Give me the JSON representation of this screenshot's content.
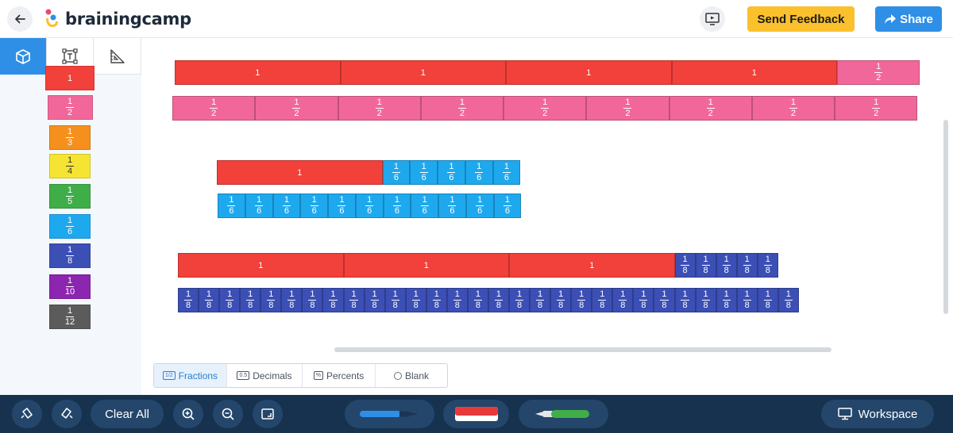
{
  "header": {
    "logo_text": "brainingcamp",
    "feedback_label": "Send Feedback",
    "share_label": "Share",
    "icons": {
      "back": "back-arrow-icon",
      "present": "present-screen-icon",
      "share": "share-arrow-icon"
    }
  },
  "sidebar": {
    "tools": [
      {
        "name": "cube-icon",
        "active": true
      },
      {
        "name": "text-box-icon",
        "active": false
      },
      {
        "name": "ruler-icon",
        "active": false
      }
    ],
    "palette": [
      {
        "num": "1",
        "den": "",
        "color": "#f2403a"
      },
      {
        "num": "1",
        "den": "2",
        "color": "#f2679a"
      },
      {
        "num": "1",
        "den": "3",
        "color": "#f5901e"
      },
      {
        "num": "1",
        "den": "4",
        "color": "#f5e532"
      },
      {
        "num": "1",
        "den": "5",
        "color": "#3fae49"
      },
      {
        "num": "1",
        "den": "6",
        "color": "#1ea9ef"
      },
      {
        "num": "1",
        "den": "8",
        "color": "#3b4fb5"
      },
      {
        "num": "1",
        "den": "10",
        "color": "#8c25b0"
      },
      {
        "num": "1",
        "den": "12",
        "color": "#5b5b5b"
      }
    ]
  },
  "workspace": {
    "rows": [
      {
        "pieces": [
          {
            "num": "1",
            "den": ""
          },
          {
            "num": "1",
            "den": ""
          },
          {
            "num": "1",
            "den": ""
          },
          {
            "num": "1",
            "den": ""
          },
          {
            "num": "1",
            "den": "2"
          }
        ]
      },
      {
        "pieces": [
          {
            "num": "1",
            "den": "2"
          },
          {
            "num": "1",
            "den": "2"
          },
          {
            "num": "1",
            "den": "2"
          },
          {
            "num": "1",
            "den": "2"
          },
          {
            "num": "1",
            "den": "2"
          },
          {
            "num": "1",
            "den": "2"
          },
          {
            "num": "1",
            "den": "2"
          },
          {
            "num": "1",
            "den": "2"
          },
          {
            "num": "1",
            "den": "2"
          }
        ]
      },
      {
        "pieces": [
          {
            "num": "1",
            "den": ""
          },
          {
            "num": "1",
            "den": "6"
          },
          {
            "num": "1",
            "den": "6"
          },
          {
            "num": "1",
            "den": "6"
          },
          {
            "num": "1",
            "den": "6"
          },
          {
            "num": "1",
            "den": "6"
          }
        ]
      },
      {
        "pieces": [
          {
            "num": "1",
            "den": "6"
          },
          {
            "num": "1",
            "den": "6"
          },
          {
            "num": "1",
            "den": "6"
          },
          {
            "num": "1",
            "den": "6"
          },
          {
            "num": "1",
            "den": "6"
          },
          {
            "num": "1",
            "den": "6"
          },
          {
            "num": "1",
            "den": "6"
          },
          {
            "num": "1",
            "den": "6"
          },
          {
            "num": "1",
            "den": "6"
          },
          {
            "num": "1",
            "den": "6"
          },
          {
            "num": "1",
            "den": "6"
          }
        ]
      },
      {
        "pieces": [
          {
            "num": "1",
            "den": ""
          },
          {
            "num": "1",
            "den": ""
          },
          {
            "num": "1",
            "den": ""
          },
          {
            "num": "1",
            "den": "8"
          },
          {
            "num": "1",
            "den": "8"
          },
          {
            "num": "1",
            "den": "8"
          },
          {
            "num": "1",
            "den": "8"
          },
          {
            "num": "1",
            "den": "8"
          }
        ]
      },
      {
        "pieces": [
          {
            "num": "1",
            "den": "8"
          },
          {
            "num": "1",
            "den": "8"
          },
          {
            "num": "1",
            "den": "8"
          },
          {
            "num": "1",
            "den": "8"
          },
          {
            "num": "1",
            "den": "8"
          },
          {
            "num": "1",
            "den": "8"
          },
          {
            "num": "1",
            "den": "8"
          },
          {
            "num": "1",
            "den": "8"
          },
          {
            "num": "1",
            "den": "8"
          },
          {
            "num": "1",
            "den": "8"
          },
          {
            "num": "1",
            "den": "8"
          },
          {
            "num": "1",
            "den": "8"
          },
          {
            "num": "1",
            "den": "8"
          },
          {
            "num": "1",
            "den": "8"
          },
          {
            "num": "1",
            "den": "8"
          },
          {
            "num": "1",
            "den": "8"
          },
          {
            "num": "1",
            "den": "8"
          },
          {
            "num": "1",
            "den": "8"
          },
          {
            "num": "1",
            "den": "8"
          },
          {
            "num": "1",
            "den": "8"
          },
          {
            "num": "1",
            "den": "8"
          },
          {
            "num": "1",
            "den": "8"
          },
          {
            "num": "1",
            "den": "8"
          },
          {
            "num": "1",
            "den": "8"
          },
          {
            "num": "1",
            "den": "8"
          },
          {
            "num": "1",
            "den": "8"
          },
          {
            "num": "1",
            "den": "8"
          },
          {
            "num": "1",
            "den": "8"
          },
          {
            "num": "1",
            "den": "8"
          },
          {
            "num": "1",
            "den": "8"
          }
        ]
      }
    ],
    "mode_tabs": [
      {
        "label": "Fractions",
        "icon_text": "1/2",
        "active": true
      },
      {
        "label": "Decimals",
        "icon_text": "0.5",
        "active": false
      },
      {
        "label": "Percents",
        "icon_text": "%",
        "active": false
      },
      {
        "label": "Blank",
        "icon_text": "",
        "active": false
      }
    ]
  },
  "toolbar": {
    "clear_label": "Clear All",
    "workspace_label": "Workspace",
    "icons": [
      "undo-icon",
      "redo-icon",
      "zoom-in-icon",
      "zoom-out-icon",
      "fit-screen-icon",
      "blue-marker-icon",
      "eraser-icon",
      "green-marker-icon",
      "monitor-icon"
    ]
  }
}
